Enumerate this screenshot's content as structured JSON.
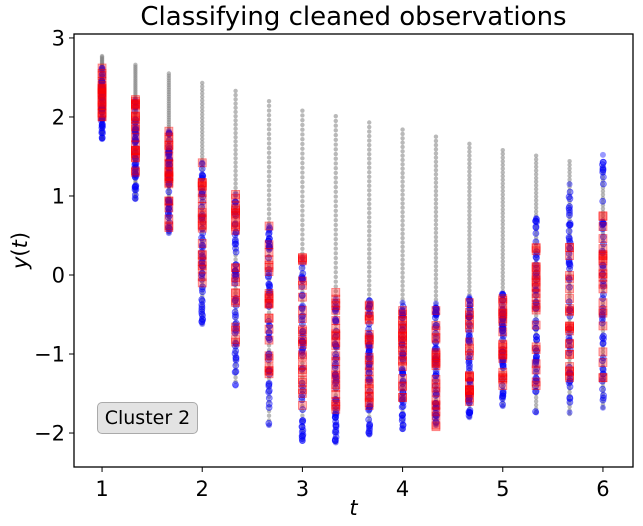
{
  "chart_data": {
    "type": "scatter",
    "title": "Classifying cleaned observations",
    "xlabel": "t",
    "ylabel": "y(t)",
    "xlim": [
      0.72,
      6.3
    ],
    "ylim": [
      -2.43,
      3.05
    ],
    "xticks": [
      1,
      2,
      3,
      4,
      5,
      6
    ],
    "yticks": [
      -2,
      -1,
      0,
      1,
      2,
      3
    ],
    "ytick_labels": [
      "−2",
      "−1",
      "0",
      "1",
      "2",
      "3"
    ],
    "grid": false,
    "annotation": "Cluster 2",
    "colors": {
      "background_series": "#808080",
      "classified_series": "#0000ff",
      "cleaned_series": "#ff0000"
    },
    "series": [
      {
        "role": "all samples (gray vertical spread)",
        "x": [
          1.0,
          1.333,
          1.667,
          2.0,
          2.333,
          2.667,
          3.0,
          3.333,
          3.667,
          4.0,
          4.333,
          4.667,
          5.0,
          5.333,
          5.667,
          6.0
        ],
        "y_min": [
          1.72,
          0.96,
          0.53,
          -0.62,
          -1.35,
          -1.9,
          -2.08,
          -2.12,
          -2.02,
          -1.95,
          -1.9,
          -1.8,
          -1.66,
          -1.74,
          -1.76,
          -1.68
        ],
        "y_max": [
          2.77,
          2.66,
          2.55,
          2.43,
          2.33,
          2.2,
          2.08,
          2.01,
          1.93,
          1.84,
          1.75,
          1.66,
          1.58,
          1.51,
          1.44,
          1.37
        ]
      },
      {
        "role": "classified points (blue)",
        "x": [
          1.0,
          1.333,
          1.667,
          2.0,
          2.333,
          2.667,
          3.0,
          3.333,
          3.667,
          4.0,
          4.333,
          4.667,
          5.0,
          5.333,
          5.667,
          6.0
        ],
        "y_min": [
          1.72,
          0.96,
          0.53,
          -0.62,
          -1.4,
          -1.9,
          -2.1,
          -2.12,
          -2.02,
          -1.95,
          -1.9,
          -1.8,
          -1.66,
          -1.74,
          -1.74,
          -1.68
        ],
        "y_max": [
          2.62,
          2.22,
          1.82,
          1.42,
          1.02,
          0.62,
          0.22,
          -0.3,
          -0.32,
          -0.35,
          -0.36,
          -0.28,
          -0.24,
          0.72,
          1.15,
          1.52
        ]
      },
      {
        "role": "cleaned observations (red squares)",
        "x": [
          1.0,
          1.333,
          1.667,
          2.0,
          2.333,
          2.667,
          3.0,
          3.333,
          3.667,
          4.0,
          4.333,
          4.667,
          5.0,
          5.333,
          5.667,
          6.0
        ],
        "y_min": [
          2.0,
          1.3,
          0.6,
          -0.1,
          -0.85,
          -1.25,
          -1.65,
          -1.7,
          -1.65,
          -1.55,
          -1.92,
          -1.6,
          -1.4,
          -1.4,
          -1.3,
          -1.3
        ],
        "y_max": [
          2.62,
          2.22,
          1.82,
          1.42,
          1.02,
          0.62,
          0.22,
          -0.22,
          -0.38,
          -0.45,
          -0.45,
          -0.35,
          -0.3,
          0.35,
          0.35,
          0.75
        ]
      }
    ]
  }
}
